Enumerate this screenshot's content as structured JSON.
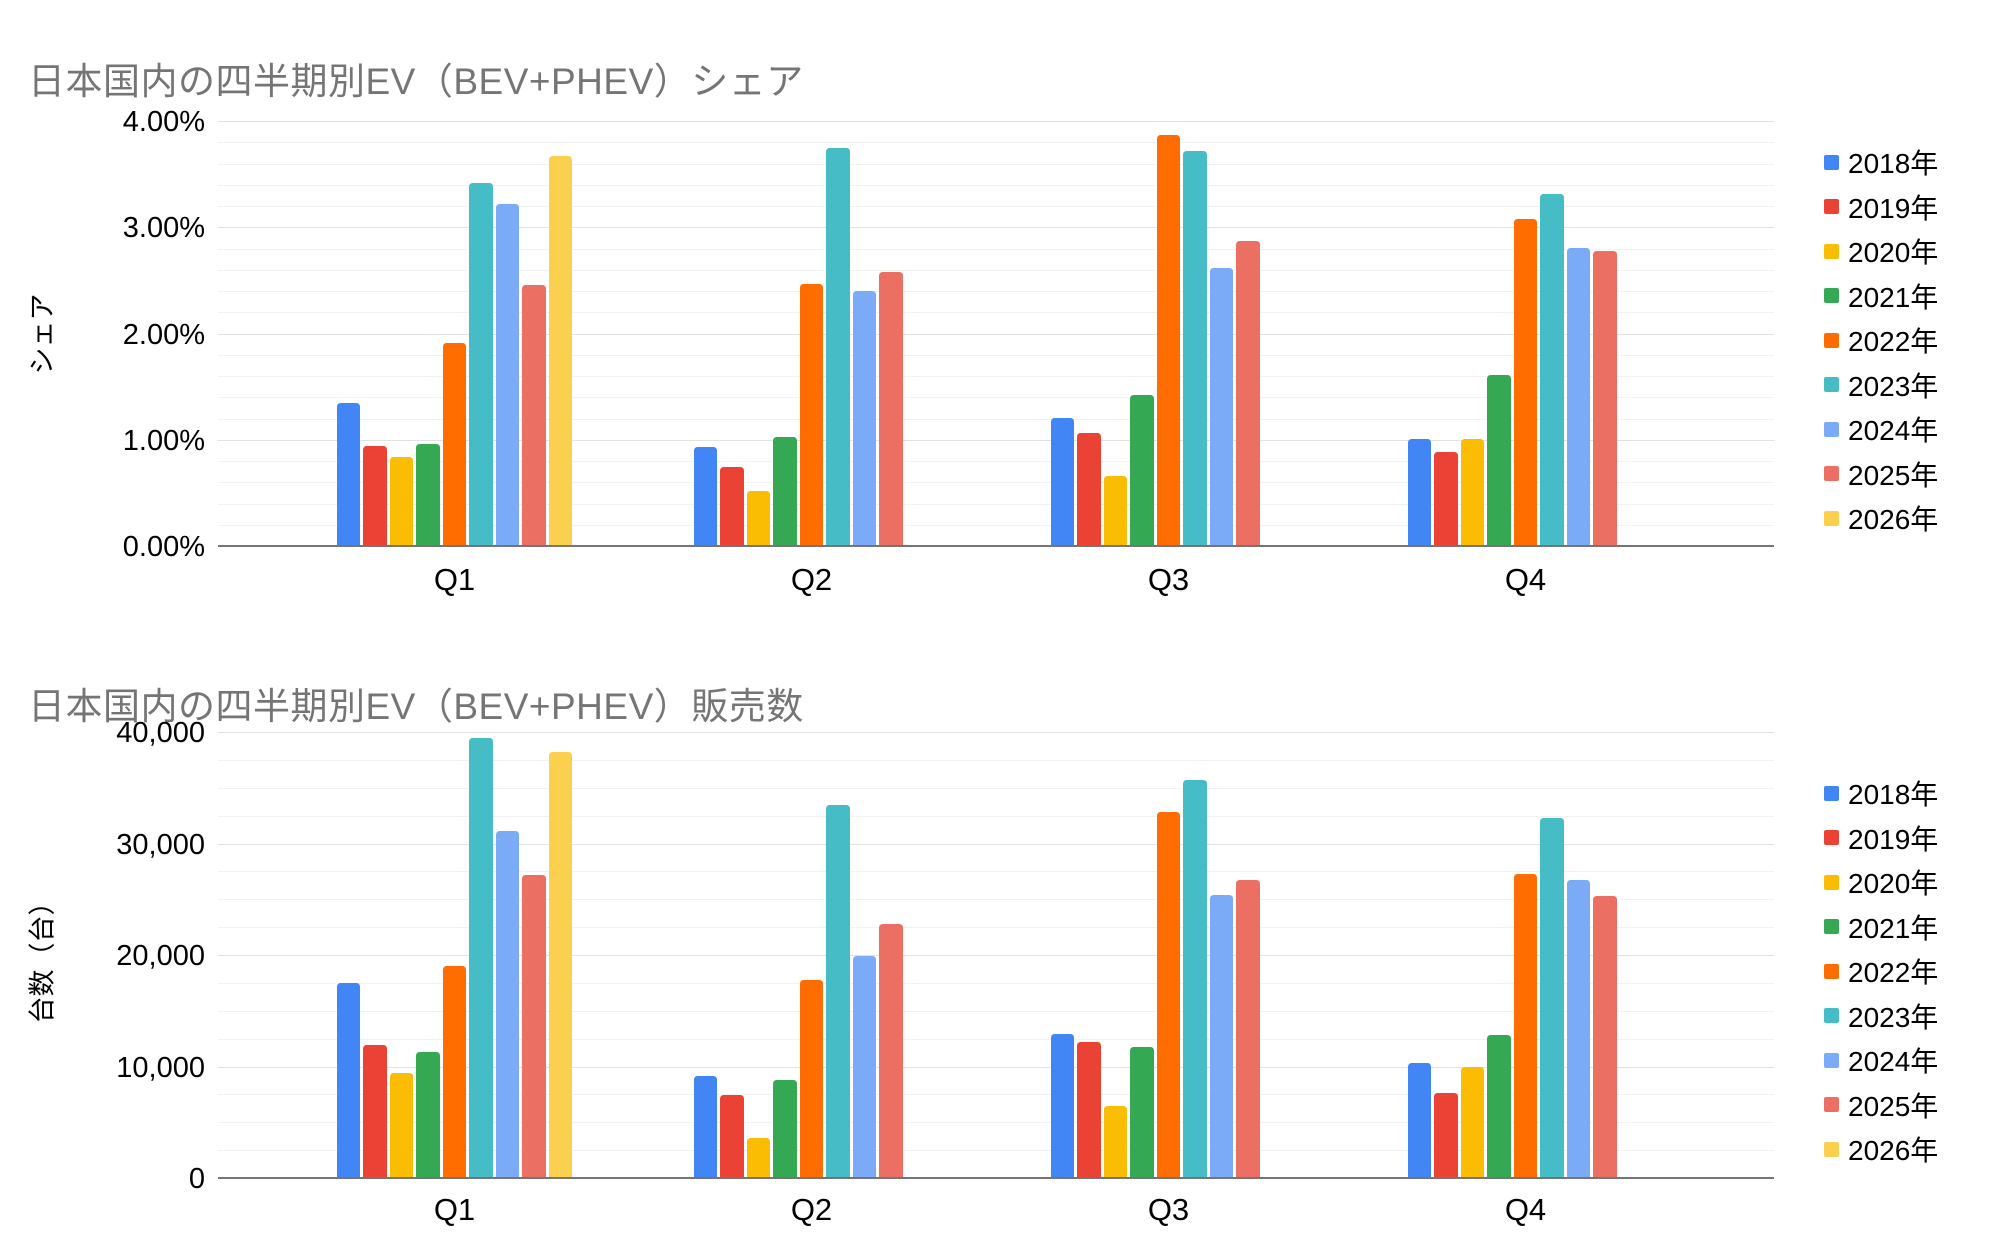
{
  "chart_data": [
    {
      "type": "bar",
      "title": "日本国内の四半期別EV（BEV+PHEV）シェア",
      "xlabel": "",
      "ylabel": "シェア",
      "categories": [
        "Q1",
        "Q2",
        "Q3",
        "Q4"
      ],
      "ylim": [
        0,
        4
      ],
      "y_major": 1,
      "y_minor": 0.2,
      "y_tick_labels": [
        "0.00%",
        "1.00%",
        "2.00%",
        "3.00%",
        "4.00%"
      ],
      "grid": true,
      "legend_position": "right",
      "series": [
        {
          "name": "2018年",
          "color": "#4285F4",
          "values": [
            1.34,
            0.92,
            1.2,
            1.0
          ]
        },
        {
          "name": "2019年",
          "color": "#EA4335",
          "values": [
            0.93,
            0.73,
            1.05,
            0.88
          ]
        },
        {
          "name": "2020年",
          "color": "#FBBC04",
          "values": [
            0.83,
            0.51,
            0.65,
            1.0
          ]
        },
        {
          "name": "2021年",
          "color": "#34A853",
          "values": [
            0.95,
            1.02,
            1.41,
            1.6
          ]
        },
        {
          "name": "2022年",
          "color": "#FF6D01",
          "values": [
            1.9,
            2.46,
            3.86,
            3.07
          ]
        },
        {
          "name": "2023年",
          "color": "#46BDC6",
          "values": [
            3.41,
            3.74,
            3.71,
            3.3
          ]
        },
        {
          "name": "2024年",
          "color": "#7BAAF7",
          "values": [
            3.21,
            2.39,
            2.61,
            2.8
          ]
        },
        {
          "name": "2025年",
          "color": "#EC6F63",
          "values": [
            2.45,
            2.57,
            2.86,
            2.77
          ]
        },
        {
          "name": "2026年",
          "color": "#FCD04F",
          "values": [
            3.66,
            null,
            null,
            null
          ]
        }
      ]
    },
    {
      "type": "bar",
      "title": "日本国内の四半期別EV（BEV+PHEV）販売数",
      "xlabel": "",
      "ylabel": "台数（台）",
      "categories": [
        "Q1",
        "Q2",
        "Q3",
        "Q4"
      ],
      "ylim": [
        0,
        40000
      ],
      "y_major": 10000,
      "y_minor": 2500,
      "y_tick_labels": [
        "0",
        "10,000",
        "20,000",
        "30,000",
        "40,000"
      ],
      "grid": true,
      "legend_position": "right",
      "series": [
        {
          "name": "2018年",
          "color": "#4285F4",
          "values": [
            17400,
            9100,
            12800,
            10200
          ]
        },
        {
          "name": "2019年",
          "color": "#EA4335",
          "values": [
            11800,
            7400,
            12100,
            7500
          ]
        },
        {
          "name": "2020年",
          "color": "#FBBC04",
          "values": [
            9300,
            3500,
            6400,
            9900
          ]
        },
        {
          "name": "2021年",
          "color": "#34A853",
          "values": [
            11200,
            8700,
            11700,
            12700
          ]
        },
        {
          "name": "2022年",
          "color": "#FF6D01",
          "values": [
            18900,
            17700,
            32700,
            27200
          ]
        },
        {
          "name": "2023年",
          "color": "#46BDC6",
          "values": [
            39400,
            33400,
            35600,
            32200
          ]
        },
        {
          "name": "2024年",
          "color": "#7BAAF7",
          "values": [
            31000,
            19800,
            25300,
            26600
          ]
        },
        {
          "name": "2025年",
          "color": "#EC6F63",
          "values": [
            27100,
            22700,
            26600,
            25200
          ]
        },
        {
          "name": "2026年",
          "color": "#FCD04F",
          "values": [
            38100,
            null,
            null,
            null
          ]
        }
      ]
    }
  ]
}
